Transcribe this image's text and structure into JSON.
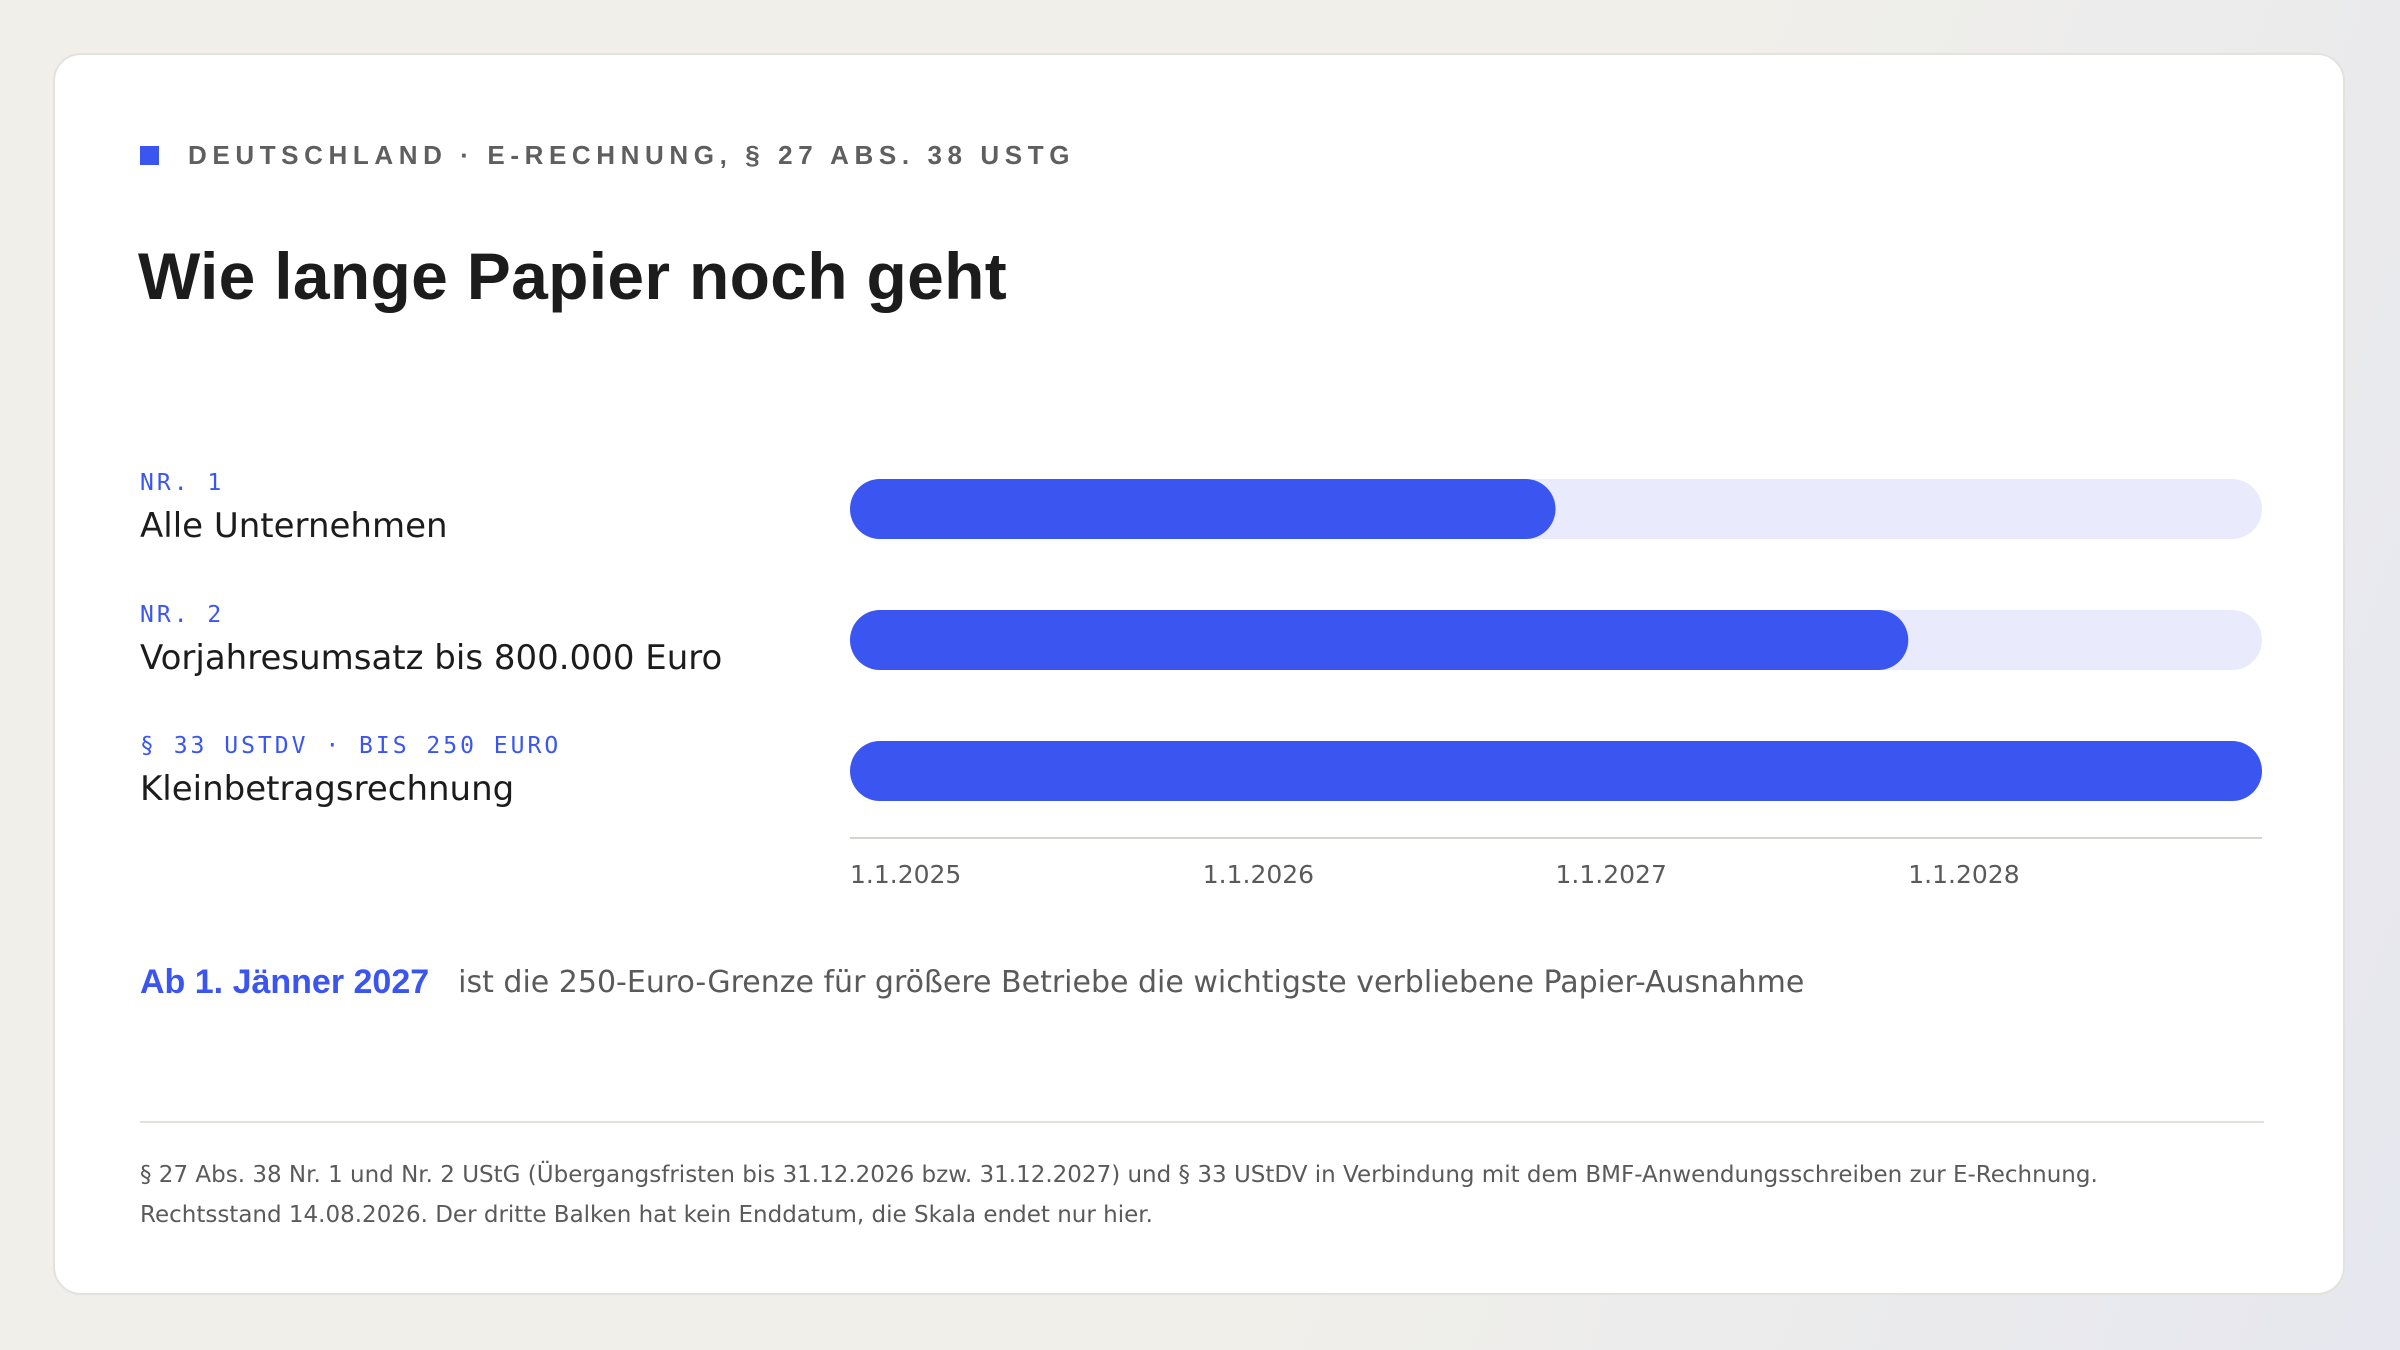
{
  "header": {
    "eyebrow": "DEUTSCHLAND · E-RECHNUNG, § 27 ABS. 38 USTG",
    "title": "Wie lange Papier noch geht"
  },
  "colors": {
    "accent": "#3b55f0",
    "track": "#e9eafc",
    "axis": "#d6d4ce",
    "text": "#1c1c1c",
    "muted": "#5a5a5a"
  },
  "chart_data": {
    "type": "bar",
    "orientation": "horizontal",
    "x_type": "date",
    "x_range": [
      "2025-01-01",
      "2029-01-01"
    ],
    "ticks": [
      "1.1.2025",
      "1.1.2026",
      "1.1.2027",
      "1.1.2028"
    ],
    "tick_dates": [
      "2025-01-01",
      "2026-01-01",
      "2027-01-01",
      "2028-01-01"
    ],
    "grid": false,
    "legend": "none",
    "categories": [
      {
        "tag": "NR. 1",
        "name": "Alle Unternehmen",
        "start": "2025-01-01",
        "end": "2027-01-01"
      },
      {
        "tag": "NR. 2",
        "name": "Vorjahresumsatz bis 800.000 Euro",
        "start": "2025-01-01",
        "end": "2028-01-01"
      },
      {
        "tag": "§ 33 USTDV · BIS 250 EURO",
        "name": "Kleinbetragsrechnung",
        "start": "2025-01-01",
        "end": "2029-01-01"
      }
    ]
  },
  "note": {
    "lead": "Ab 1. Jänner 2027",
    "text": "ist die 250-Euro-Grenze für größere Betriebe die wichtigste verbliebene Papier-Ausnahme"
  },
  "footnote": {
    "line1": "§ 27 Abs. 38 Nr. 1 und Nr. 2 UStG (Übergangsfristen bis 31.12.2026 bzw. 31.12.2027) und § 33 UStDV in Verbindung mit dem BMF-Anwendungsschreiben zur E-Rechnung.",
    "line2": "Rechtsstand 14.08.2026. Der dritte Balken hat kein Enddatum, die Skala endet nur hier."
  }
}
